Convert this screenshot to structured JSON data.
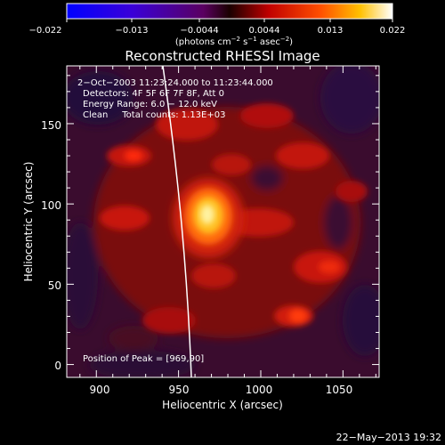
{
  "colorbar": {
    "ticks": [
      "−0.022",
      "−0.013",
      "−0.0044",
      "0.0044",
      "0.013",
      "0.022"
    ],
    "unit_prefix": "(photons cm",
    "unit_exp1": "−2",
    "unit_mid": " s",
    "unit_exp2": "−1",
    "unit_mid2": " asec",
    "unit_exp3": "−2",
    "unit_suffix": ")"
  },
  "plot": {
    "title": "Reconstructed RHESSI Image",
    "annotations": [
      "2−Oct−2003 11:23:24.000 to 11:23:44.000",
      "Detectors: 4F 5F 6F 7F 8F, Att 0",
      "Energy Range: 6.0 − 12.0 keV",
      "Clean     Total counts: 1.13E+03"
    ],
    "peak_label": "Position of Peak = [969,90]",
    "x_label": "Heliocentric X (arcsec)",
    "y_label": "Heliocentric Y (arcsec)",
    "x_ticks": [
      "900",
      "950",
      "1000",
      "1050"
    ],
    "y_ticks": [
      "0",
      "50",
      "100",
      "150"
    ],
    "x_range": [
      882,
      1072
    ],
    "y_range": [
      -8,
      186
    ],
    "peak": {
      "x": 969,
      "y": 90
    }
  },
  "footer": {
    "timestamp": "22−May−2013 19:32"
  }
}
